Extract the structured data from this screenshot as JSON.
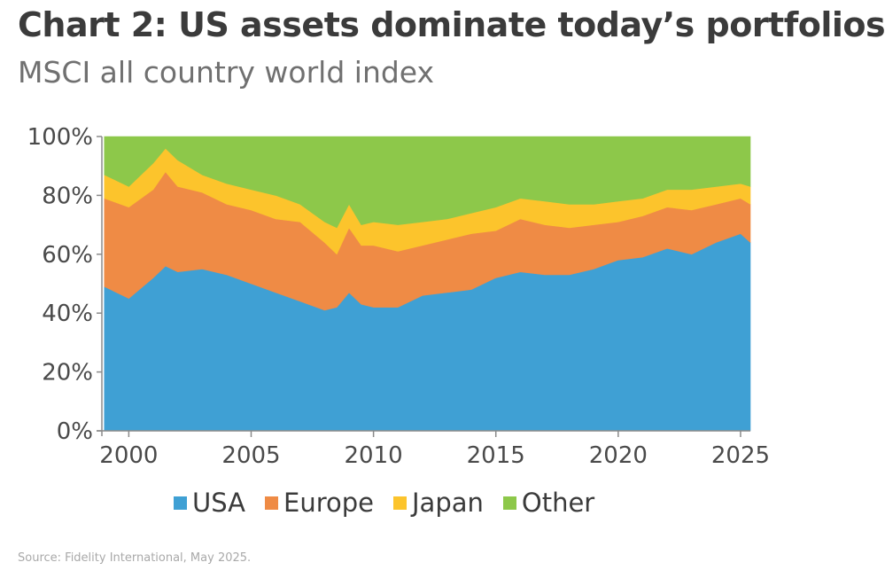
{
  "header": {
    "title": "Chart 2: US assets dominate today’s portfolios",
    "subtitle": "MSCI all country world index"
  },
  "source": "Source: Fidelity International, May 2025.",
  "chart_data": {
    "type": "area",
    "stacked": true,
    "x": [
      1999.0,
      2000.0,
      2001.0,
      2001.5,
      2002.0,
      2003.0,
      2004.0,
      2005.0,
      2006.0,
      2007.0,
      2008.0,
      2008.5,
      2009.0,
      2009.5,
      2010.0,
      2011.0,
      2012.0,
      2013.0,
      2014.0,
      2015.0,
      2016.0,
      2017.0,
      2018.0,
      2019.0,
      2020.0,
      2021.0,
      2022.0,
      2023.0,
      2024.0,
      2025.0,
      2025.4
    ],
    "series": [
      {
        "name": "USA",
        "color": "#3fa0d4",
        "values": [
          49,
          45,
          52,
          56,
          54,
          55,
          53,
          50,
          47,
          44,
          41,
          42,
          47,
          43,
          42,
          42,
          46,
          47,
          48,
          52,
          54,
          53,
          53,
          55,
          58,
          59,
          62,
          60,
          64,
          67,
          64
        ]
      },
      {
        "name": "Europe",
        "color": "#ef8b45",
        "values": [
          30,
          31,
          30,
          32,
          29,
          26,
          24,
          25,
          25,
          27,
          23,
          18,
          22,
          20,
          21,
          19,
          17,
          18,
          19,
          16,
          18,
          17,
          16,
          15,
          13,
          14,
          14,
          15,
          13,
          12,
          13
        ]
      },
      {
        "name": "Japan",
        "color": "#fcc42c",
        "values": [
          8,
          7,
          9,
          8,
          9,
          6,
          7,
          7,
          8,
          6,
          7,
          9,
          8,
          7,
          8,
          9,
          8,
          7,
          7,
          8,
          7,
          8,
          8,
          7,
          7,
          6,
          6,
          7,
          6,
          5,
          6
        ]
      },
      {
        "name": "Other",
        "color": "#8dc84a",
        "values": [
          13,
          17,
          9,
          4,
          8,
          13,
          16,
          18,
          20,
          23,
          29,
          31,
          23,
          30,
          29,
          30,
          29,
          28,
          26,
          24,
          21,
          22,
          23,
          23,
          22,
          21,
          18,
          18,
          17,
          16,
          17
        ]
      }
    ],
    "xlim": [
      1998.9,
      2025.4
    ],
    "ylim": [
      0,
      100
    ],
    "x_ticks": [
      2000,
      2005,
      2010,
      2015,
      2020,
      2025
    ],
    "y_ticks": [
      0,
      20,
      40,
      60,
      80,
      100
    ],
    "y_tick_labels": [
      "0%",
      "20%",
      "40%",
      "60%",
      "80%",
      "100%"
    ],
    "legend": "bottom",
    "grid": false
  }
}
